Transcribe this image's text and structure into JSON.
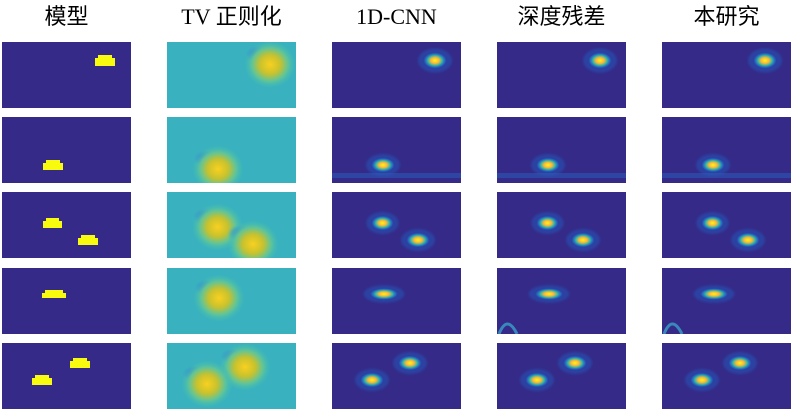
{
  "columns": [
    "模型",
    "TV 正则化",
    "1D-CNN",
    "深度残差",
    "本研究"
  ]
}
